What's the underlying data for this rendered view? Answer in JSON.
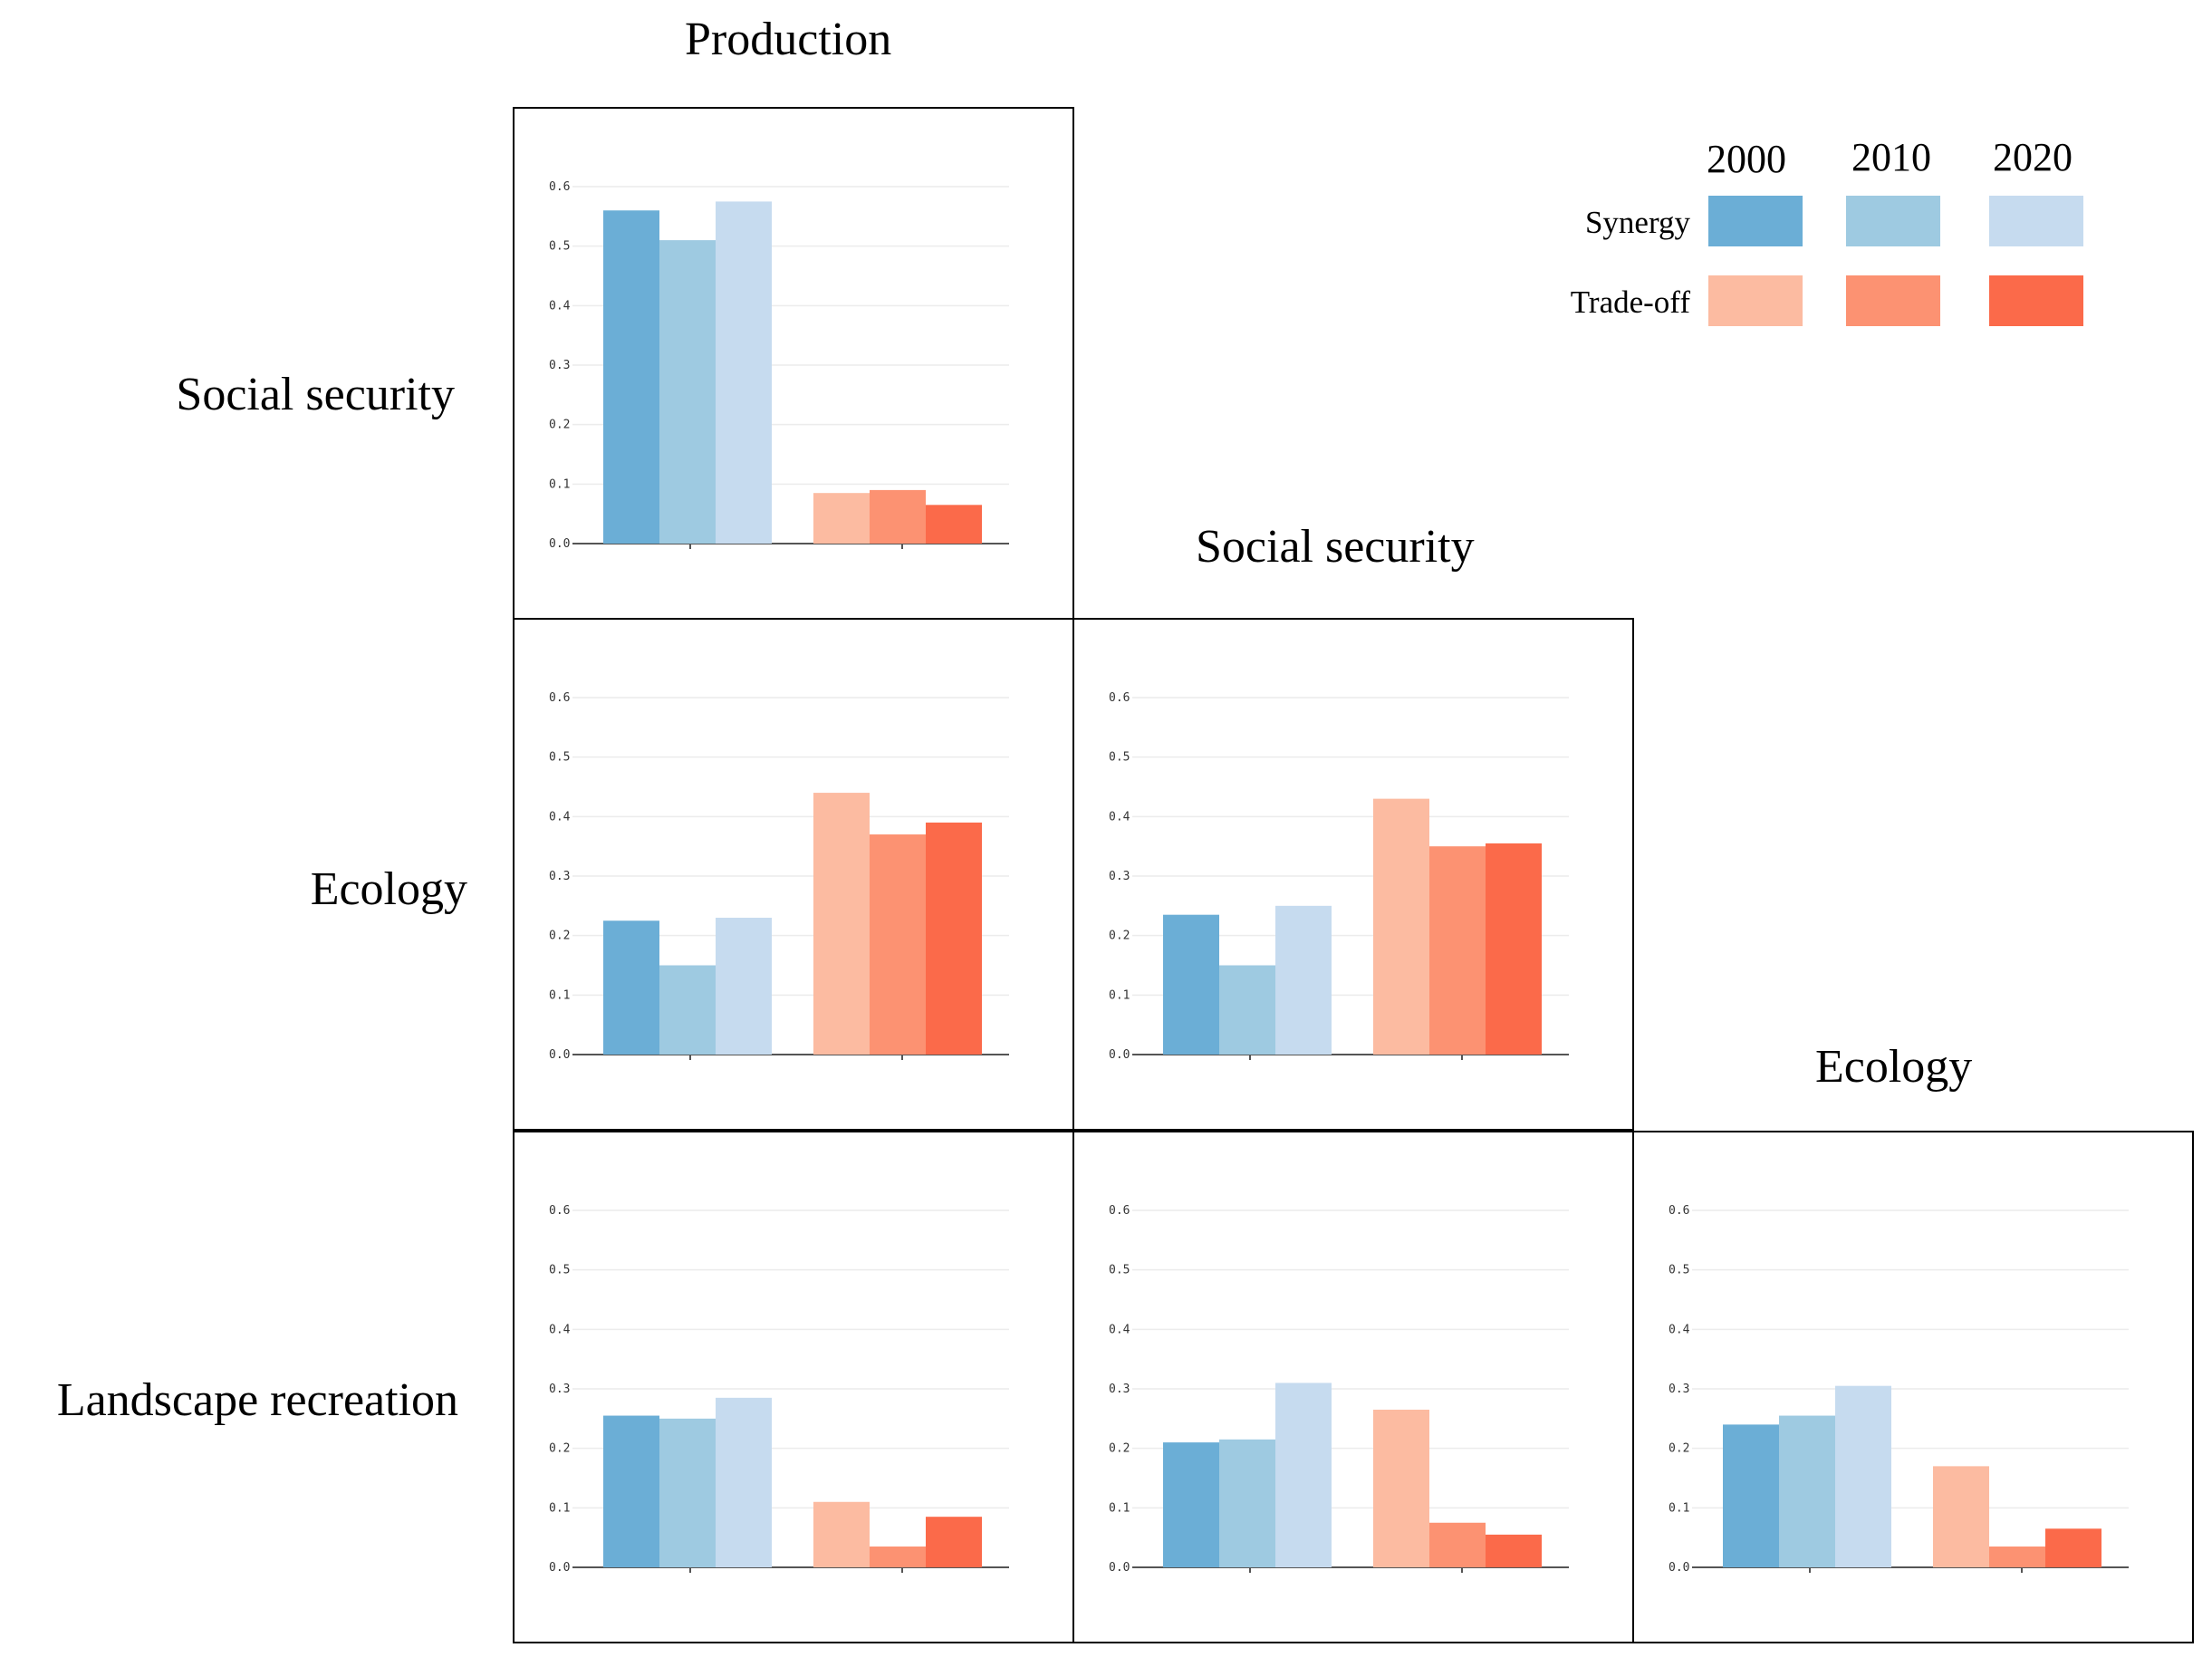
{
  "column_titles": [
    "Production",
    "Social security",
    "Ecology"
  ],
  "row_titles": [
    "Social security",
    "Ecology",
    "Landscape recreation"
  ],
  "legend": {
    "years": [
      "2000",
      "2010",
      "2020"
    ],
    "groups": [
      {
        "label": "Synergy",
        "colors": [
          "#6baed6",
          "#9ecae1",
          "#c6dbef"
        ]
      },
      {
        "label": "Trade-off",
        "colors": [
          "#fcbba1",
          "#fc9272",
          "#fb6a4a"
        ]
      }
    ]
  },
  "chart_data": [
    {
      "type": "bar",
      "row": "Social security",
      "col": "Production",
      "ylim": [
        0,
        0.6
      ],
      "yticks": [
        "0.0",
        "0.1",
        "0.2",
        "0.3",
        "0.4",
        "0.5",
        "0.6"
      ],
      "categories": [
        "Synergy",
        "Trade-off"
      ],
      "series": [
        {
          "name": "2000",
          "values": [
            0.56,
            0.085
          ]
        },
        {
          "name": "2010",
          "values": [
            0.51,
            0.09
          ]
        },
        {
          "name": "2020",
          "values": [
            0.575,
            0.065
          ]
        }
      ]
    },
    {
      "type": "bar",
      "row": "Ecology",
      "col": "Production",
      "ylim": [
        0,
        0.6
      ],
      "yticks": [
        "0.0",
        "0.1",
        "0.2",
        "0.3",
        "0.4",
        "0.5",
        "0.6"
      ],
      "categories": [
        "Synergy",
        "Trade-off"
      ],
      "series": [
        {
          "name": "2000",
          "values": [
            0.225,
            0.44
          ]
        },
        {
          "name": "2010",
          "values": [
            0.15,
            0.37
          ]
        },
        {
          "name": "2020",
          "values": [
            0.23,
            0.39
          ]
        }
      ]
    },
    {
      "type": "bar",
      "row": "Ecology",
      "col": "Social security",
      "ylim": [
        0,
        0.6
      ],
      "yticks": [
        "0.0",
        "0.1",
        "0.2",
        "0.3",
        "0.4",
        "0.5",
        "0.6"
      ],
      "categories": [
        "Synergy",
        "Trade-off"
      ],
      "series": [
        {
          "name": "2000",
          "values": [
            0.235,
            0.43
          ]
        },
        {
          "name": "2010",
          "values": [
            0.15,
            0.35
          ]
        },
        {
          "name": "2020",
          "values": [
            0.25,
            0.355
          ]
        }
      ]
    },
    {
      "type": "bar",
      "row": "Landscape recreation",
      "col": "Production",
      "ylim": [
        0,
        0.6
      ],
      "yticks": [
        "0.0",
        "0.1",
        "0.2",
        "0.3",
        "0.4",
        "0.5",
        "0.6"
      ],
      "categories": [
        "Synergy",
        "Trade-off"
      ],
      "series": [
        {
          "name": "2000",
          "values": [
            0.255,
            0.11
          ]
        },
        {
          "name": "2010",
          "values": [
            0.25,
            0.035
          ]
        },
        {
          "name": "2020",
          "values": [
            0.285,
            0.085
          ]
        }
      ]
    },
    {
      "type": "bar",
      "row": "Landscape recreation",
      "col": "Social security",
      "ylim": [
        0,
        0.6
      ],
      "yticks": [
        "0.0",
        "0.1",
        "0.2",
        "0.3",
        "0.4",
        "0.5",
        "0.6"
      ],
      "categories": [
        "Synergy",
        "Trade-off"
      ],
      "series": [
        {
          "name": "2000",
          "values": [
            0.21,
            0.265
          ]
        },
        {
          "name": "2010",
          "values": [
            0.215,
            0.075
          ]
        },
        {
          "name": "2020",
          "values": [
            0.31,
            0.055
          ]
        }
      ]
    },
    {
      "type": "bar",
      "row": "Landscape recreation",
      "col": "Ecology",
      "ylim": [
        0,
        0.6
      ],
      "yticks": [
        "0.0",
        "0.1",
        "0.2",
        "0.3",
        "0.4",
        "0.5",
        "0.6"
      ],
      "categories": [
        "Synergy",
        "Trade-off"
      ],
      "series": [
        {
          "name": "2000",
          "values": [
            0.24,
            0.17
          ]
        },
        {
          "name": "2010",
          "values": [
            0.255,
            0.035
          ]
        },
        {
          "name": "2020",
          "values": [
            0.305,
            0.065
          ]
        }
      ]
    }
  ]
}
